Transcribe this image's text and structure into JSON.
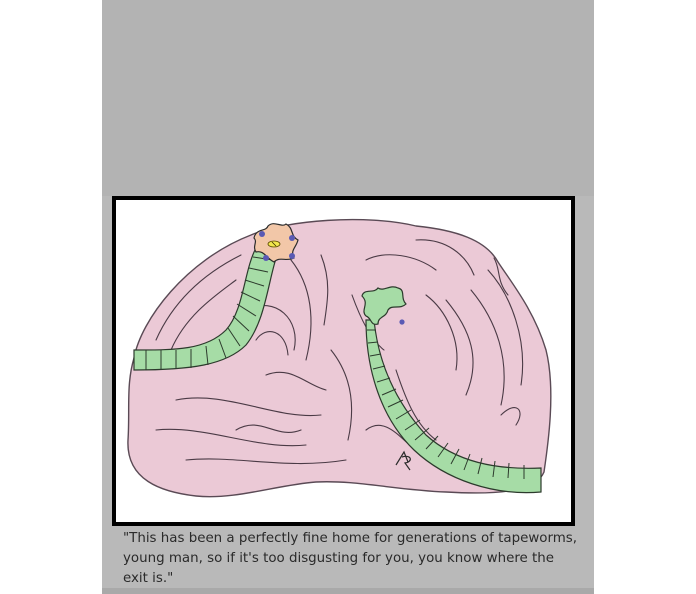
{
  "cartoon": {
    "caption": "\"This has been a perfectly fine home  for generations of tapeworms, young man, so if it's too disgusting for you, you know where the exit is.\"",
    "colors": {
      "background": "#ffffff",
      "gray_panel": "#b9b9b9",
      "frame_border": "#000000",
      "intestine_pink": "#ebc9d6",
      "tapeworm_green": "#a6dca6",
      "head_peach": "#f2c7a8",
      "sucker_blue": "#5a5ab4",
      "eye_yellow": "#f2e64d"
    },
    "icons": [
      "intestine-illustration",
      "old-tapeworm-drawing",
      "young-tapeworm-drawing",
      "artist-signature"
    ]
  }
}
